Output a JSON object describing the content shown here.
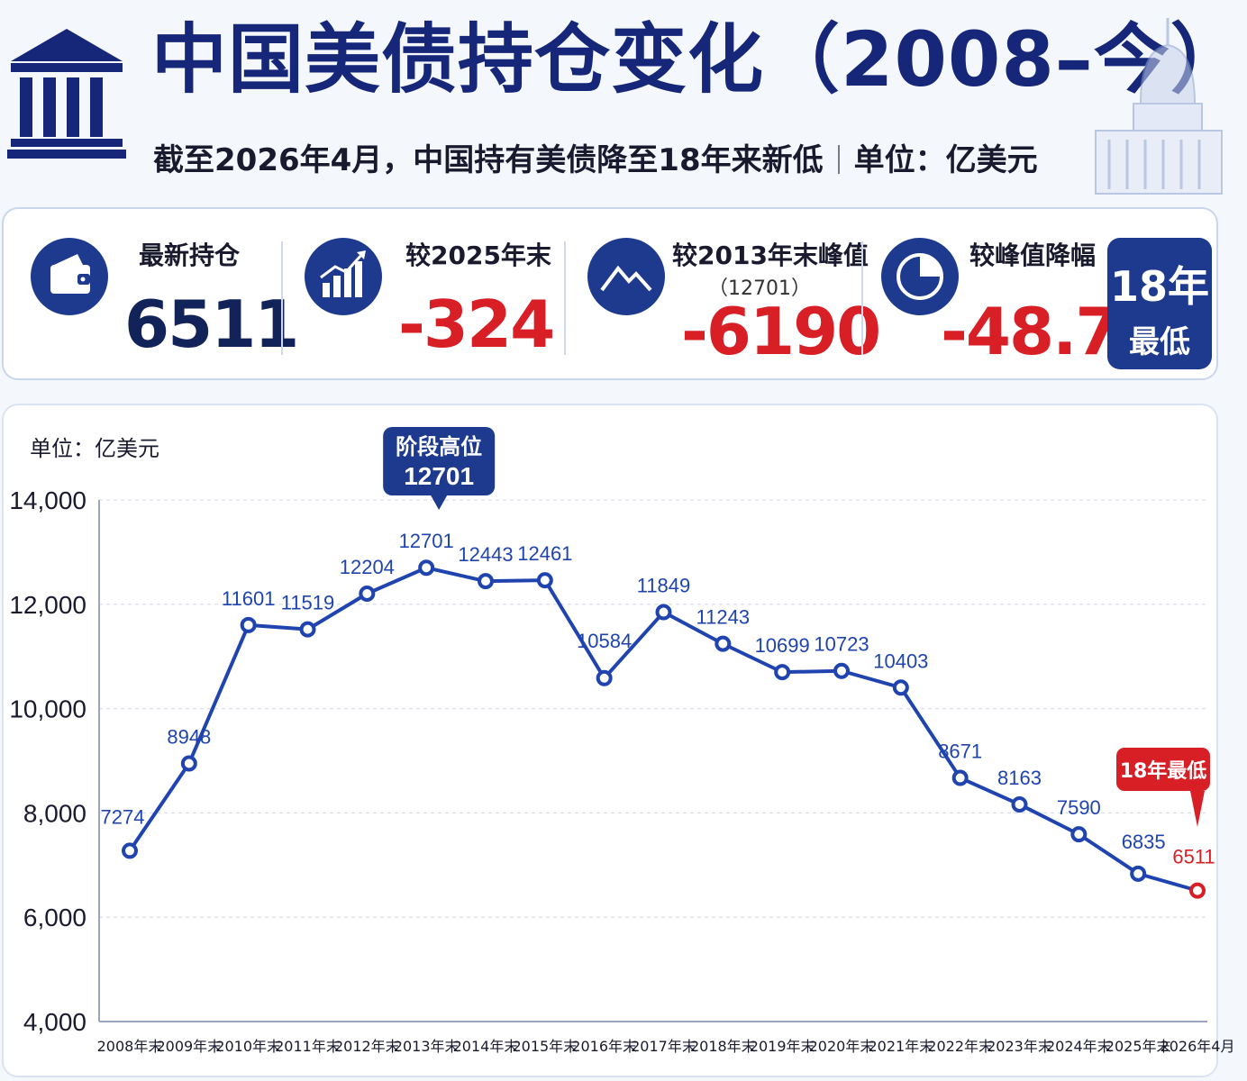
{
  "header": {
    "title": "中国美债持仓变化（2008–今）",
    "subtitle_main": "截至2026年4月，中国持有美债降至18年来新低",
    "subtitle_unit": "单位：亿美元"
  },
  "stats": [
    {
      "icon": "wallet-icon",
      "label": "最新持仓",
      "sublabel": "",
      "value": "6511",
      "color": "#12235a"
    },
    {
      "icon": "bar-chart-icon",
      "label": "较2025年末",
      "sublabel": "",
      "value": "-324",
      "color": "#d81f26"
    },
    {
      "icon": "mountain-icon",
      "label": "较2013年末峰值",
      "sublabel": "（12701）",
      "value": "-6190",
      "color": "#d81f26"
    },
    {
      "icon": "pie-chart-icon",
      "label": "较峰值降幅",
      "sublabel": "",
      "value": "-48.7%",
      "color": "#d81f26"
    }
  ],
  "badge": {
    "line1": "18年",
    "line2": "最低"
  },
  "colors": {
    "primary": "#1d3a8f",
    "line": "#1f44b0",
    "negative": "#d81f26",
    "text": "#12235a"
  },
  "chart_data": {
    "type": "line",
    "unit_label": "单位：亿美元",
    "categories": [
      "2008年末",
      "2009年末",
      "2010年末",
      "2011年末",
      "2012年末",
      "2013年末",
      "2014年末",
      "2015年末",
      "2016年末",
      "2017年末",
      "2018年末",
      "2019年末",
      "2020年末",
      "2021年末",
      "2022年末",
      "2023年末",
      "2024年末",
      "2025年末",
      "2026年4月"
    ],
    "values": [
      7274,
      8948,
      11601,
      11519,
      12204,
      12701,
      12443,
      12461,
      10584,
      11849,
      11243,
      10699,
      10723,
      10403,
      8671,
      8163,
      7590,
      6835,
      6511
    ],
    "ylim": [
      4000,
      14000
    ],
    "yticks": [
      "4,000",
      "6,000",
      "8,000",
      "10,000",
      "12,000",
      "14,000"
    ],
    "grid": true,
    "annotations": [
      {
        "category": "2013年末",
        "line1": "阶段高位",
        "line2": "12701",
        "color": "#1d3a8f"
      },
      {
        "category": "2026年4月",
        "line1": "18年最低",
        "line2": "",
        "color": "#d81f26"
      }
    ]
  }
}
